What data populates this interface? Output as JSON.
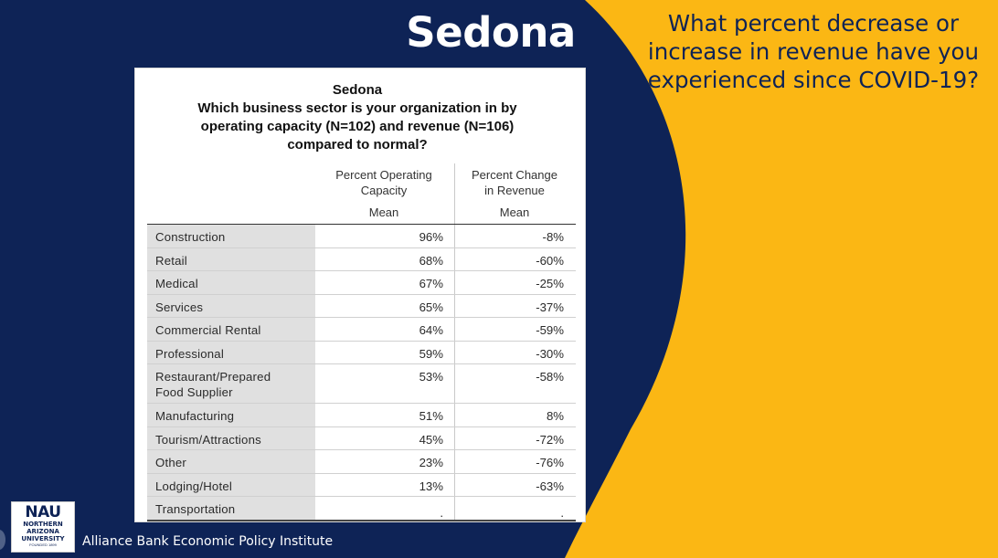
{
  "colors": {
    "navy": "#0e2356",
    "gold": "#fbb714",
    "panel": "#ffffff",
    "category_fill": "#e0e0e0"
  },
  "slide": {
    "title": "Sedona",
    "question": "What percent decrease or increase in revenue have you experienced since COVID-19?"
  },
  "table": {
    "title_lines": [
      "Sedona",
      "Which business sector is your organization in by",
      "operating capacity (N=102) and revenue (N=106)",
      "compared to normal?"
    ],
    "column_headers": [
      {
        "label_lines": [
          "Percent Operating",
          "Capacity"
        ],
        "stat": "Mean"
      },
      {
        "label_lines": [
          "Percent Change",
          "in Revenue"
        ],
        "stat": "Mean"
      }
    ],
    "rows": [
      {
        "category_lines": [
          "Construction"
        ],
        "operating_capacity": "96%",
        "revenue_change": "-8%"
      },
      {
        "category_lines": [
          "Retail"
        ],
        "operating_capacity": "68%",
        "revenue_change": "-60%"
      },
      {
        "category_lines": [
          "Medical"
        ],
        "operating_capacity": "67%",
        "revenue_change": "-25%"
      },
      {
        "category_lines": [
          "Services"
        ],
        "operating_capacity": "65%",
        "revenue_change": "-37%"
      },
      {
        "category_lines": [
          "Commercial Rental"
        ],
        "operating_capacity": "64%",
        "revenue_change": "-59%"
      },
      {
        "category_lines": [
          "Professional"
        ],
        "operating_capacity": "59%",
        "revenue_change": "-30%"
      },
      {
        "category_lines": [
          "Restaurant/Prepared",
          "Food Supplier"
        ],
        "operating_capacity": "53%",
        "revenue_change": "-58%"
      },
      {
        "category_lines": [
          "Manufacturing"
        ],
        "operating_capacity": "51%",
        "revenue_change": "8%"
      },
      {
        "category_lines": [
          "Tourism/Attractions"
        ],
        "operating_capacity": "45%",
        "revenue_change": "-72%"
      },
      {
        "category_lines": [
          "Other"
        ],
        "operating_capacity": "23%",
        "revenue_change": "-76%"
      },
      {
        "category_lines": [
          "Lodging/Hotel"
        ],
        "operating_capacity": "13%",
        "revenue_change": "-63%"
      },
      {
        "category_lines": [
          "Transportation"
        ],
        "operating_capacity": ".",
        "revenue_change": "."
      }
    ]
  },
  "footer": {
    "logo_mark": "NAU",
    "logo_sub_lines": [
      "NORTHERN",
      "ARIZONA",
      "UNIVERSITY"
    ],
    "logo_founded": "FOUNDED 1899",
    "institute": "Alliance Bank Economic Policy Institute"
  }
}
